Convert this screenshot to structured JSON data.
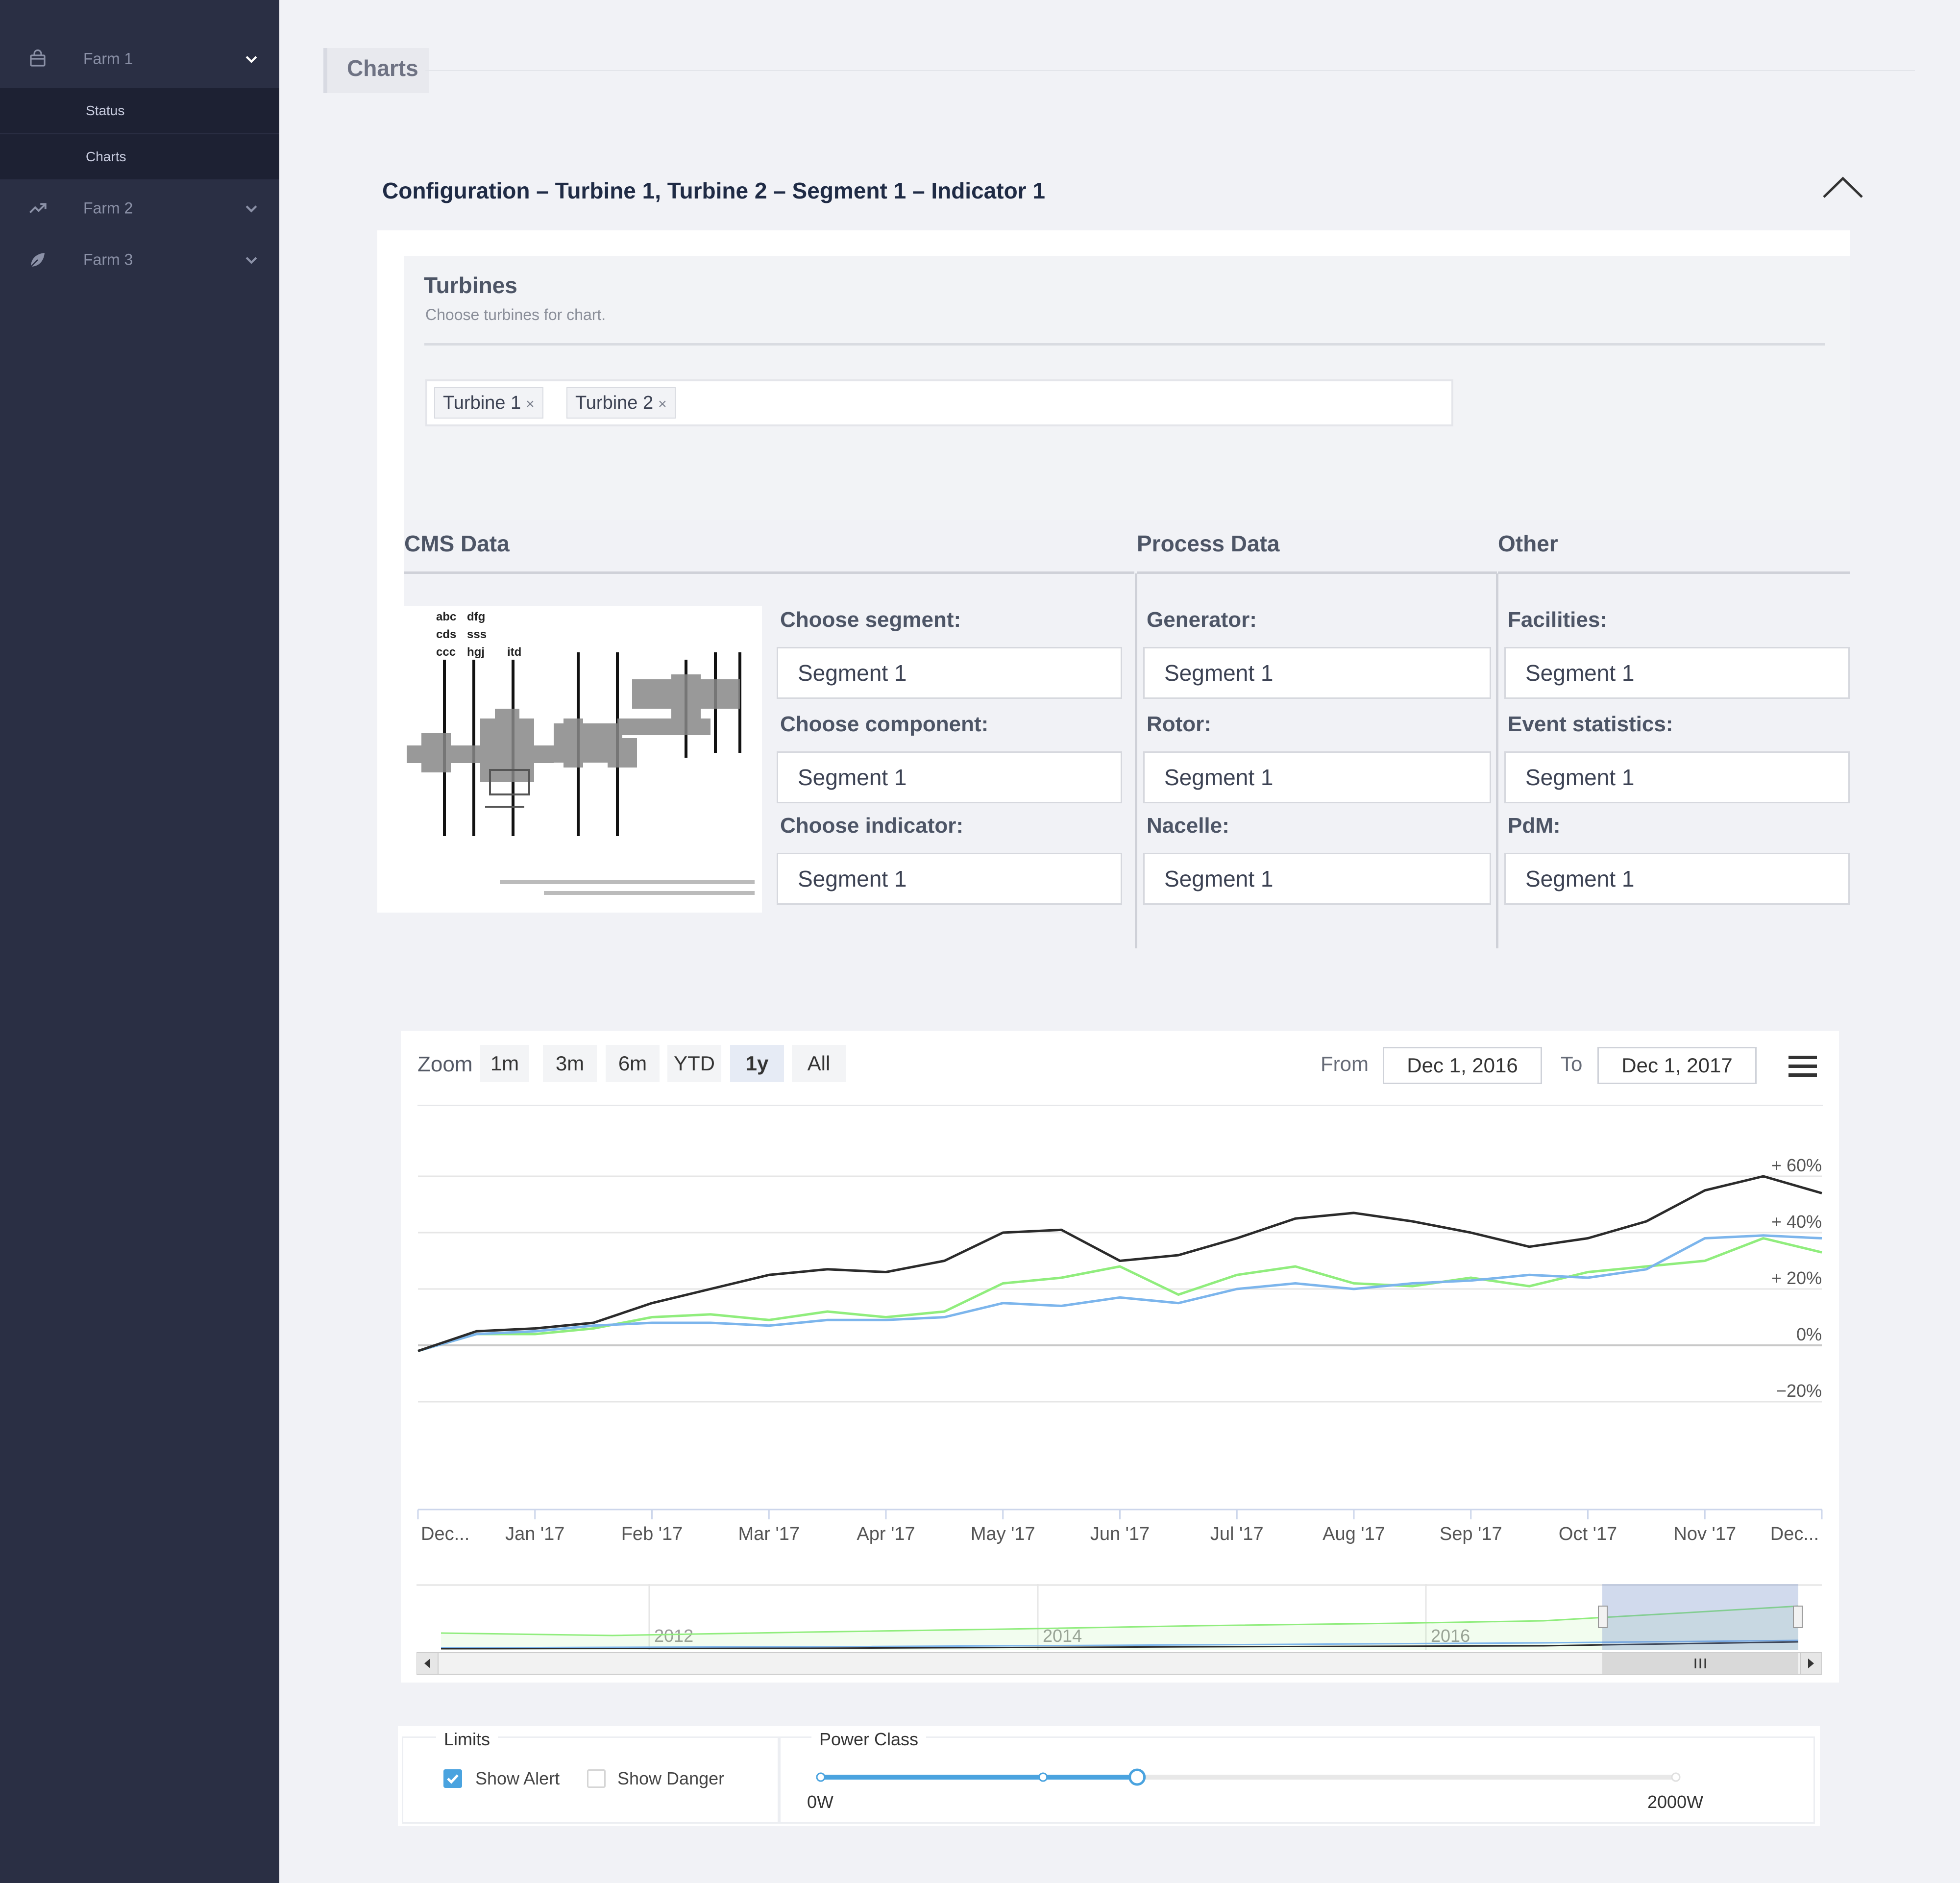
{
  "sidebar": {
    "items": [
      {
        "label": "Farm 1",
        "icon": "bag-icon",
        "expanded": true,
        "children": [
          {
            "label": "Status"
          },
          {
            "label": "Charts"
          }
        ]
      },
      {
        "label": "Farm 2",
        "icon": "trend-icon",
        "expanded": false
      },
      {
        "label": "Farm 3",
        "icon": "leaf-icon",
        "expanded": false
      }
    ]
  },
  "header": {
    "title": "Charts"
  },
  "config": {
    "title": "Configuration – Turbine 1, Turbine 2 – Segment 1 – Indicator 1",
    "turbines": {
      "title": "Turbines",
      "subtitle": "Choose turbines for chart.",
      "selected": [
        "Turbine 1",
        "Turbine 2"
      ],
      "remove_symbol": "×"
    },
    "columns": {
      "cms": {
        "title": "CMS Data",
        "fields": [
          {
            "label": "Choose segment:",
            "value": "Segment 1"
          },
          {
            "label": "Choose component:",
            "value": "Segment 1"
          },
          {
            "label": "Choose indicator:",
            "value": "Segment 1"
          }
        ],
        "diagram_labels": [
          "abc",
          "dfg",
          "cds",
          "sss",
          "ccc",
          "hgj",
          "itd"
        ]
      },
      "process": {
        "title": "Process Data",
        "fields": [
          {
            "label": "Generator:",
            "value": "Segment 1"
          },
          {
            "label": "Rotor:",
            "value": "Segment 1"
          },
          {
            "label": "Nacelle:",
            "value": "Segment 1"
          }
        ]
      },
      "other": {
        "title": "Other",
        "fields": [
          {
            "label": "Facilities:",
            "value": "Segment 1"
          },
          {
            "label": "Event statistics:",
            "value": "Segment 1"
          },
          {
            "label": "PdM:",
            "value": "Segment 1"
          }
        ]
      }
    }
  },
  "chart_toolbar": {
    "zoom_label": "Zoom",
    "zoom_buttons": [
      "1m",
      "3m",
      "6m",
      "YTD",
      "1y",
      "All"
    ],
    "active_zoom": "1y",
    "from_label": "From",
    "from_value": "Dec 1, 2016",
    "to_label": "To",
    "to_value": "Dec 1, 2017"
  },
  "chart_data": {
    "type": "line",
    "y_ticks": [
      "+ 60%",
      "+ 40%",
      "+ 20%",
      "0%",
      "−20%"
    ],
    "ylim": [
      -20,
      60
    ],
    "x_ticks": [
      "Dec...",
      "Jan '17",
      "Feb '17",
      "Mar '17",
      "Apr '17",
      "May '17",
      "Jun '17",
      "Jul '17",
      "Aug '17",
      "Sep '17",
      "Oct '17",
      "Nov '17",
      "Dec..."
    ],
    "x": [
      0,
      0.5,
      1,
      1.5,
      2,
      2.5,
      3,
      3.5,
      4,
      4.5,
      5,
      5.5,
      6,
      6.5,
      7,
      7.5,
      8,
      8.5,
      9,
      9.5,
      10,
      10.5,
      11,
      11.5,
      12
    ],
    "series": [
      {
        "color": "#2b2b2b",
        "values": [
          -2,
          5,
          6,
          8,
          15,
          20,
          25,
          27,
          26,
          30,
          40,
          41,
          30,
          32,
          38,
          45,
          47,
          44,
          40,
          35,
          38,
          44,
          55,
          60,
          54
        ]
      },
      {
        "color": "#7cb5ec",
        "values": [
          -2,
          4,
          5,
          7,
          8,
          8,
          7,
          9,
          9,
          10,
          15,
          14,
          17,
          15,
          20,
          22,
          20,
          22,
          23,
          25,
          24,
          27,
          38,
          39,
          38
        ]
      },
      {
        "color": "#90ed7d",
        "values": [
          -2,
          4,
          4,
          6,
          10,
          11,
          9,
          12,
          10,
          12,
          22,
          24,
          28,
          18,
          25,
          28,
          22,
          21,
          24,
          21,
          26,
          28,
          30,
          38,
          33
        ]
      }
    ],
    "navigator": {
      "labels": [
        "2012",
        "2014",
        "2016"
      ]
    }
  },
  "limits": {
    "title": "Limits",
    "show_alert_label": "Show Alert",
    "show_alert_checked": true,
    "show_danger_label": "Show Danger",
    "show_danger_checked": false
  },
  "power_class": {
    "title": "Power Class",
    "min_label": "0W",
    "max_label": "2000W",
    "value_fraction": 0.37
  },
  "colors": {
    "accent": "#4aa3df",
    "sidebar": "#2a2f44",
    "sidebar_active": "#1d2133"
  }
}
